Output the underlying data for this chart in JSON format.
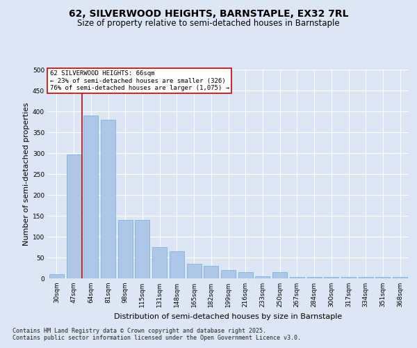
{
  "title_line1": "62, SILVERWOOD HEIGHTS, BARNSTAPLE, EX32 7RL",
  "title_line2": "Size of property relative to semi-detached houses in Barnstaple",
  "xlabel": "Distribution of semi-detached houses by size in Barnstaple",
  "ylabel": "Number of semi-detached properties",
  "categories": [
    "30sqm",
    "47sqm",
    "64sqm",
    "81sqm",
    "98sqm",
    "115sqm",
    "131sqm",
    "148sqm",
    "165sqm",
    "182sqm",
    "199sqm",
    "216sqm",
    "233sqm",
    "250sqm",
    "267sqm",
    "284sqm",
    "300sqm",
    "317sqm",
    "334sqm",
    "351sqm",
    "368sqm"
  ],
  "values": [
    10,
    296,
    390,
    380,
    140,
    140,
    75,
    65,
    35,
    30,
    20,
    15,
    5,
    15,
    3,
    3,
    3,
    3,
    3,
    3,
    3
  ],
  "bar_color": "#aec6e8",
  "bar_edge_color": "#6baed6",
  "vline_x": 1.5,
  "annotation_text": "62 SILVERWOOD HEIGHTS: 66sqm\n← 23% of semi-detached houses are smaller (326)\n76% of semi-detached houses are larger (1,075) →",
  "annotation_box_color": "#ffffff",
  "annotation_box_edge": "#cc0000",
  "vline_color": "#cc0000",
  "background_color": "#dce6f5",
  "plot_bg_color": "#dce6f5",
  "ylim": [
    0,
    500
  ],
  "yticks": [
    0,
    50,
    100,
    150,
    200,
    250,
    300,
    350,
    400,
    450,
    500
  ],
  "footer": "Contains HM Land Registry data © Crown copyright and database right 2025.\nContains public sector information licensed under the Open Government Licence v3.0.",
  "grid_color": "#ffffff",
  "title_fontsize": 10,
  "subtitle_fontsize": 8.5,
  "tick_fontsize": 6.5,
  "label_fontsize": 8,
  "footer_fontsize": 6,
  "annot_fontsize": 6.5
}
